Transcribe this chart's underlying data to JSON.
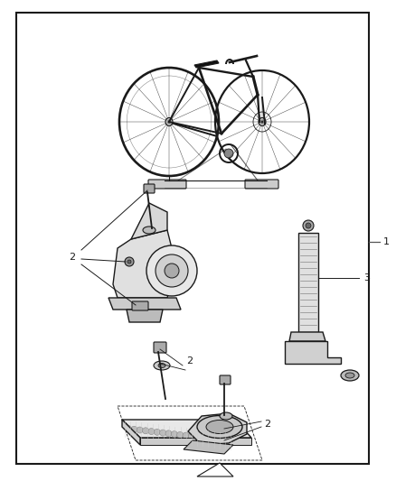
{
  "background_color": "#ffffff",
  "border_color": "#1a1a1a",
  "line_color": "#1a1a1a",
  "label_color": "#000000",
  "fig_width": 4.38,
  "fig_height": 5.33,
  "dpi": 100,
  "label_1": "1",
  "label_2": "2",
  "label_3": "3"
}
